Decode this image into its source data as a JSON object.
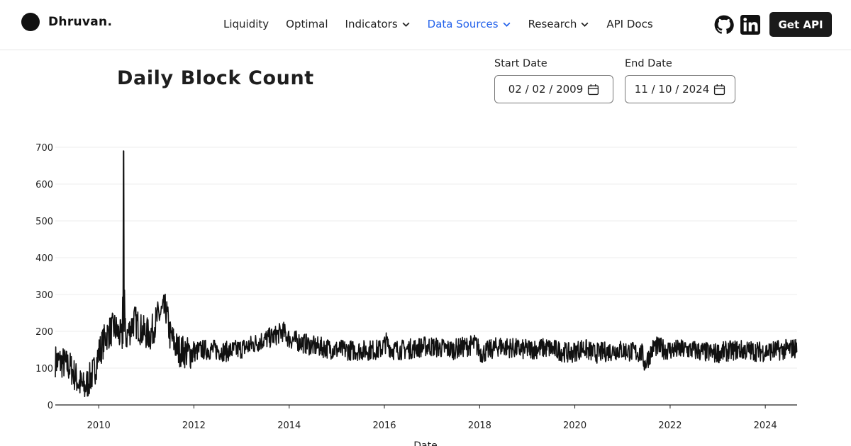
{
  "brand": {
    "name": "Dhruvan."
  },
  "nav": {
    "items": [
      {
        "label": "Liquidity",
        "dropdown": false,
        "active": false
      },
      {
        "label": "Optimal",
        "dropdown": false,
        "active": false
      },
      {
        "label": "Indicators",
        "dropdown": true,
        "active": false
      },
      {
        "label": "Data Sources",
        "dropdown": true,
        "active": true
      },
      {
        "label": "Research",
        "dropdown": true,
        "active": false
      },
      {
        "label": "API Docs",
        "dropdown": false,
        "active": false
      }
    ],
    "cta_label": "Get API",
    "icons": [
      "github-icon",
      "linkedin-icon"
    ],
    "accent_color": "#2563eb"
  },
  "page": {
    "title": "Daily Block Count"
  },
  "filters": {
    "start_label": "Start Date",
    "start_value": "02 / 02 / 2009",
    "end_label": "End Date",
    "end_value": "11 / 10 / 2024"
  },
  "chart_data": {
    "type": "line",
    "title": "Daily Block Count",
    "xlabel": "Date",
    "ylabel": "",
    "ylim": [
      0,
      700
    ],
    "xlim": [
      "2009-02-02",
      "2024-09-01"
    ],
    "yticks": [
      0,
      100,
      200,
      300,
      400,
      500,
      600,
      700
    ],
    "xticks": [
      "2010",
      "2012",
      "2014",
      "2016",
      "2018",
      "2020",
      "2022",
      "2024"
    ],
    "grid": true,
    "line_color": "#111111",
    "series": [
      {
        "x": [
          "2009-02-02",
          "2009-04-01",
          "2009-06-01",
          "2009-08-01",
          "2009-09-15",
          "2009-10-15",
          "2009-12-01",
          "2010-01-01",
          "2010-03-01",
          "2010-05-01",
          "2010-07-01",
          "2010-07-11",
          "2010-07-20",
          "2010-08-01",
          "2010-10-01",
          "2010-12-01",
          "2011-02-01",
          "2011-04-01",
          "2011-06-01",
          "2011-07-01",
          "2011-09-01",
          "2011-12-01",
          "2012-03-01",
          "2012-06-01",
          "2012-09-01",
          "2012-12-01",
          "2013-03-01",
          "2013-06-01",
          "2013-09-01",
          "2013-11-15",
          "2014-01-01",
          "2014-04-01",
          "2014-07-01",
          "2014-10-01",
          "2015-01-01",
          "2015-06-01",
          "2015-12-01",
          "2016-01-15",
          "2016-03-01",
          "2016-06-01",
          "2016-12-01",
          "2017-06-01",
          "2017-12-01",
          "2018-01-15",
          "2018-06-01",
          "2018-12-01",
          "2019-06-01",
          "2019-12-01",
          "2020-03-01",
          "2020-06-01",
          "2020-12-01",
          "2021-06-01",
          "2021-06-20",
          "2021-09-01",
          "2021-12-01",
          "2022-06-01",
          "2022-12-01",
          "2023-06-01",
          "2023-12-01",
          "2024-06-01",
          "2024-09-01"
        ],
        "y": [
          120,
          115,
          100,
          60,
          45,
          65,
          95,
          140,
          190,
          210,
          180,
          680,
          200,
          185,
          230,
          200,
          190,
          240,
          260,
          190,
          150,
          140,
          150,
          150,
          145,
          150,
          160,
          175,
          185,
          200,
          180,
          170,
          160,
          155,
          150,
          148,
          150,
          170,
          150,
          150,
          160,
          150,
          165,
          140,
          160,
          150,
          155,
          140,
          155,
          140,
          150,
          140,
          110,
          160,
          150,
          150,
          140,
          150,
          145,
          150,
          155
        ]
      }
    ]
  }
}
